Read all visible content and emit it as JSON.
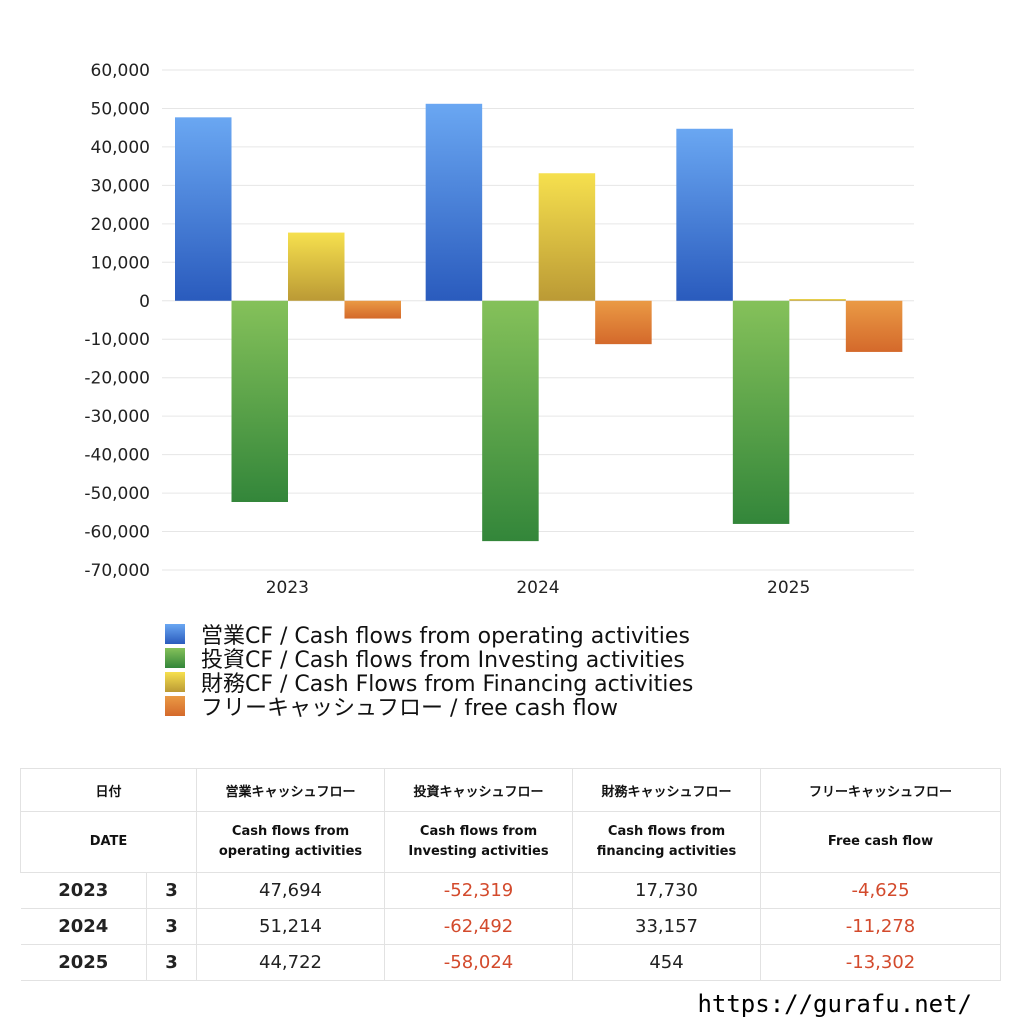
{
  "chart_data": {
    "type": "bar",
    "categories": [
      "2023",
      "2024",
      "2025"
    ],
    "ylim": [
      -70000,
      60000
    ],
    "yticks": [
      60000,
      50000,
      40000,
      30000,
      20000,
      10000,
      0,
      -10000,
      -20000,
      -30000,
      -40000,
      -50000,
      -60000,
      -70000
    ],
    "ytick_labels": [
      "60,000",
      "50,000",
      "40,000",
      "30,000",
      "20,000",
      "10,000",
      "0",
      "-10,000",
      "-20,000",
      "-30,000",
      "-40,000",
      "-50,000",
      "-60,000",
      "-70,000"
    ],
    "grid": true,
    "legend_placement": "bottom",
    "series": [
      {
        "name": "営業CF / Cash flows from operating activities",
        "values": [
          47694,
          51214,
          44722
        ],
        "color_top": "#6aa7f2",
        "color_bottom": "#2a5bbd"
      },
      {
        "name": "投資CF / Cash flows from Investing activities",
        "values": [
          -52319,
          -62492,
          -58024
        ],
        "color_top": "#85c15a",
        "color_bottom": "#33863a"
      },
      {
        "name": "財務CF / Cash Flows from Financing activities",
        "values": [
          17730,
          33157,
          454
        ],
        "color_top": "#f6e04e",
        "color_bottom": "#bb9a35"
      },
      {
        "name": "フリーキャッシュフロー / free cash flow",
        "values": [
          -4625,
          -11278,
          -13302
        ],
        "color_top": "#ea9a45",
        "color_bottom": "#d4692b"
      }
    ]
  },
  "table": {
    "header1": {
      "date": "日付",
      "operating": "営業キャッシュフロー",
      "investing": "投資キャッシュフロー",
      "financing": "財務キャッシュフロー",
      "free": "フリーキャッシュフロー"
    },
    "header2": {
      "date": "DATE",
      "operating_1": "Cash flows from",
      "operating_2": "operating activities",
      "investing_1": "Cash flows from",
      "investing_2": "Investing activities",
      "financing_1": "Cash flows from",
      "financing_2": "financing activities",
      "free": "Free cash flow"
    },
    "rows": [
      {
        "year": "2023",
        "month": "3",
        "operating": "47,694",
        "investing": "-52,319",
        "financing": "17,730",
        "free": "-4,625"
      },
      {
        "year": "2024",
        "month": "3",
        "operating": "51,214",
        "investing": "-62,492",
        "financing": "33,157",
        "free": "-11,278"
      },
      {
        "year": "2025",
        "month": "3",
        "operating": "44,722",
        "investing": "-58,024",
        "financing": "454",
        "free": "-13,302"
      }
    ],
    "negative_color": "#d34a2c"
  },
  "footer": {
    "url": "https://gurafu.net/"
  }
}
